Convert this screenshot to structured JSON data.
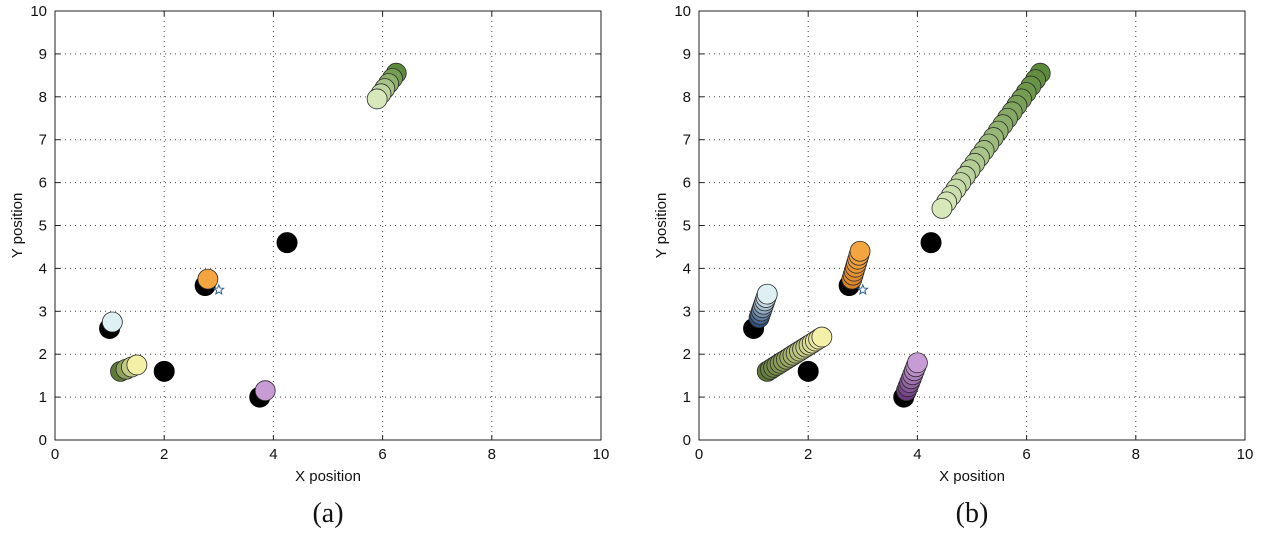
{
  "chart_data": [
    {
      "type": "scatter",
      "panel_label": "(a)",
      "xlabel": "X position",
      "ylabel": "Y position",
      "xlim": [
        0,
        10
      ],
      "ylim": [
        0,
        10
      ],
      "xticks": [
        "0",
        "2",
        "4",
        "6",
        "8",
        "10"
      ],
      "yticks": [
        "0",
        "1",
        "2",
        "3",
        "4",
        "5",
        "6",
        "7",
        "8",
        "9",
        "10"
      ],
      "grid": true,
      "markers": [
        {
          "kind": "point",
          "color": "#000000",
          "x": 1.0,
          "y": 2.6
        },
        {
          "kind": "point",
          "color": "#000000",
          "x": 2.0,
          "y": 1.6
        },
        {
          "kind": "point",
          "color": "#000000",
          "x": 2.75,
          "y": 3.6
        },
        {
          "kind": "point",
          "color": "#000000",
          "x": 3.75,
          "y": 1.0
        },
        {
          "kind": "point",
          "color": "#000000",
          "x": 4.25,
          "y": 4.6
        },
        {
          "kind": "star",
          "color": "#2c5f94",
          "x": 3.0,
          "y": 3.5
        }
      ],
      "trails": [
        {
          "color_start": "#5d8a3a",
          "color_end": "#d7e8ba",
          "start": [
            6.25,
            8.55
          ],
          "end": [
            5.9,
            7.95
          ],
          "count": 6
        },
        {
          "color_start": "#dff0f5",
          "color_end": "#dff0f5",
          "start": [
            1.05,
            2.75
          ],
          "end": [
            1.05,
            2.75
          ],
          "count": 1
        },
        {
          "color_start": "#5d7a36",
          "color_end": "#f4f0a8",
          "start": [
            1.2,
            1.6
          ],
          "end": [
            1.5,
            1.75
          ],
          "count": 4
        },
        {
          "color_start": "#f5a540",
          "color_end": "#f5a540",
          "start": [
            2.8,
            3.75
          ],
          "end": [
            2.8,
            3.75
          ],
          "count": 1
        },
        {
          "color_start": "#c79bd3",
          "color_end": "#c79bd3",
          "start": [
            3.85,
            1.15
          ],
          "end": [
            3.85,
            1.15
          ],
          "count": 1
        }
      ]
    },
    {
      "type": "scatter",
      "panel_label": "(b)",
      "xlabel": "X position",
      "ylabel": "Y position",
      "xlim": [
        0,
        10
      ],
      "ylim": [
        0,
        10
      ],
      "xticks": [
        "0",
        "2",
        "4",
        "6",
        "8",
        "10"
      ],
      "yticks": [
        "0",
        "1",
        "2",
        "3",
        "4",
        "5",
        "6",
        "7",
        "8",
        "9",
        "10"
      ],
      "grid": true,
      "markers": [
        {
          "kind": "point",
          "color": "#000000",
          "x": 1.0,
          "y": 2.6
        },
        {
          "kind": "point",
          "color": "#000000",
          "x": 2.0,
          "y": 1.6
        },
        {
          "kind": "point",
          "color": "#000000",
          "x": 2.75,
          "y": 3.6
        },
        {
          "kind": "point",
          "color": "#000000",
          "x": 3.75,
          "y": 1.0
        },
        {
          "kind": "point",
          "color": "#000000",
          "x": 4.25,
          "y": 4.6
        },
        {
          "kind": "star",
          "color": "#2c5f94",
          "x": 3.0,
          "y": 3.5
        }
      ],
      "trails": [
        {
          "color_start": "#5d8a3a",
          "color_end": "#d7e8ba",
          "start": [
            6.25,
            8.55
          ],
          "end": [
            4.45,
            5.4
          ],
          "count": 22
        },
        {
          "color_start": "#2d4f7c",
          "color_end": "#dff0f5",
          "start": [
            1.1,
            2.85
          ],
          "end": [
            1.25,
            3.4
          ],
          "count": 8
        },
        {
          "color_start": "#5d7a36",
          "color_end": "#f4f0a8",
          "start": [
            1.25,
            1.6
          ],
          "end": [
            2.25,
            2.4
          ],
          "count": 18
        },
        {
          "color_start": "#d8832a",
          "color_end": "#f5a540",
          "start": [
            2.8,
            3.75
          ],
          "end": [
            2.95,
            4.4
          ],
          "count": 8
        },
        {
          "color_start": "#6a3a7e",
          "color_end": "#c79bd3",
          "start": [
            3.8,
            1.15
          ],
          "end": [
            4.0,
            1.8
          ],
          "count": 8
        }
      ]
    }
  ]
}
